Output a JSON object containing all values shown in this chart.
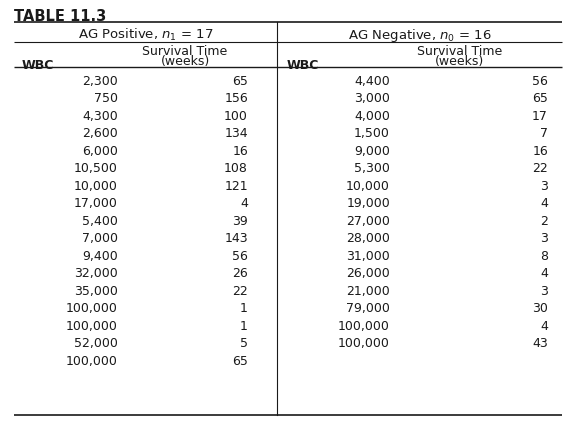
{
  "title": "TABLE 11.3",
  "group1_header": "AG Positive, η1 = 17",
  "group2_header": "AG Negative, η0 = 16",
  "group1_header_math": [
    "AG Positive, ",
    "n",
    "₁",
    " = 17"
  ],
  "group2_header_math": [
    "AG Negative, ",
    "n",
    "₀",
    " = 16"
  ],
  "col1_header": "WBC",
  "col2_header_line1": "Survival Time",
  "col2_header_line2": "(weeks)",
  "group1_wbc": [
    "2,300",
    "750",
    "4,300",
    "2,600",
    "6,000",
    "10,500",
    "10,000",
    "17,000",
    "5,400",
    "7,000",
    "9,400",
    "32,000",
    "35,000",
    "100,000",
    "100,000",
    "52,000",
    "100,000"
  ],
  "group1_survival": [
    "65",
    "156",
    "100",
    "134",
    "16",
    "108",
    "121",
    "4",
    "39",
    "143",
    "56",
    "26",
    "22",
    "1",
    "1",
    "5",
    "65"
  ],
  "group2_wbc": [
    "4,400",
    "3,000",
    "4,000",
    "1,500",
    "9,000",
    "5,300",
    "10,000",
    "19,000",
    "27,000",
    "28,000",
    "31,000",
    "26,000",
    "21,000",
    "79,000",
    "100,000",
    "100,000"
  ],
  "group2_survival": [
    "56",
    "65",
    "17",
    "7",
    "16",
    "22",
    "3",
    "4",
    "2",
    "3",
    "8",
    "4",
    "3",
    "30",
    "4",
    "43"
  ],
  "bg_color": "#ffffff",
  "text_color": "#1a1a1a",
  "font_size": 9.0,
  "title_font_size": 10.5,
  "fig_width": 5.76,
  "fig_height": 4.31,
  "dpi": 100
}
